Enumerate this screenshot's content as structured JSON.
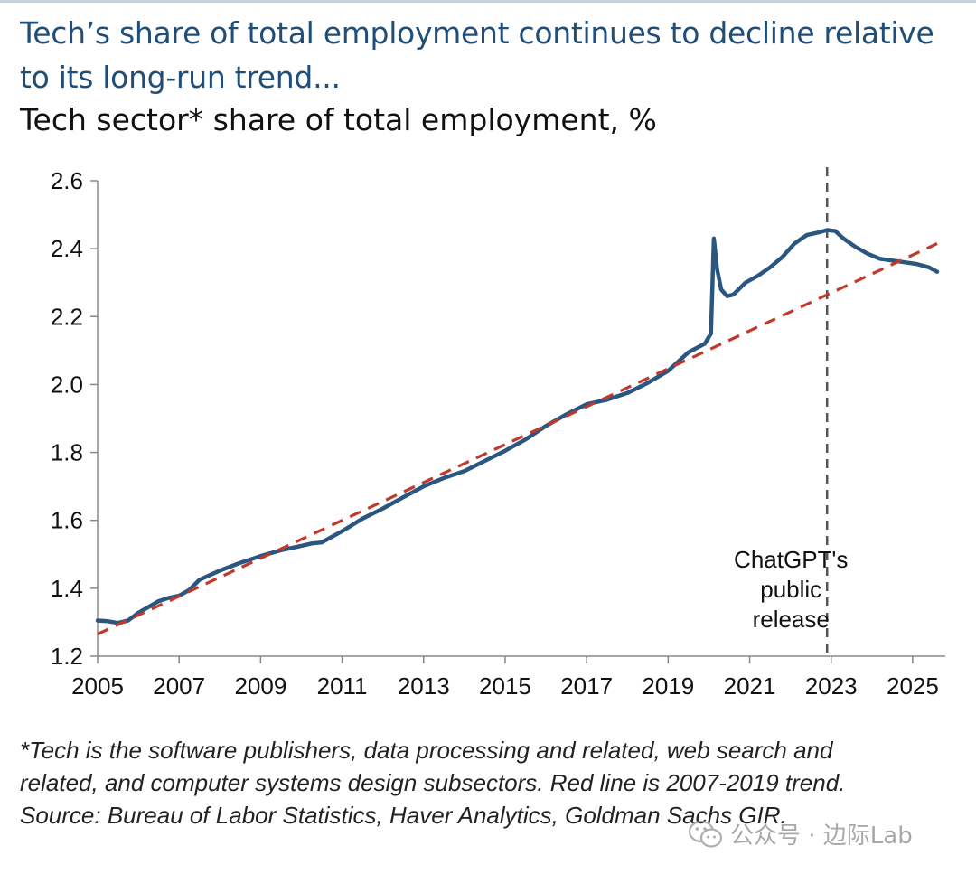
{
  "title": "Tech’s share of total employment continues to decline relative to its long-run trend...",
  "subtitle": "Tech sector* share of total employment, %",
  "footnote": [
    "*Tech is the software publishers, data processing and related, web search and",
    "related, and computer systems design subsectors. Red line is 2007-2019 trend.",
    "Source: Bureau of Labor Statistics, Haver Analytics, Goldman Sachs GIR."
  ],
  "watermark": "公众号 · 边际Lab",
  "colors": {
    "title": "#1f4e79",
    "series": "#2b5680",
    "trend": "#c0392b",
    "marker": "#555555"
  },
  "chart_data": {
    "type": "line",
    "xlim": [
      2005,
      2025.8
    ],
    "ylim": [
      1.2,
      2.6
    ],
    "x_ticks": [
      2005,
      2007,
      2009,
      2011,
      2013,
      2015,
      2017,
      2019,
      2021,
      2023,
      2025
    ],
    "x_tick_labels": [
      "2005",
      "2007",
      "2009",
      "2011",
      "2013",
      "2015",
      "2017",
      "2019",
      "2021",
      "2023",
      "2025"
    ],
    "y_ticks": [
      1.2,
      1.4,
      1.6,
      1.8,
      2.0,
      2.2,
      2.4,
      2.6
    ],
    "y_tick_labels": [
      "1.2",
      "1.4",
      "1.6",
      "1.8",
      "2.0",
      "2.2",
      "2.4",
      "2.6"
    ],
    "series": [
      {
        "name": "Tech sector share of total employment",
        "style": "solid",
        "x": [
          2005.0,
          2005.25,
          2005.5,
          2005.75,
          2006.0,
          2006.25,
          2006.5,
          2006.75,
          2007.0,
          2007.25,
          2007.5,
          2008.0,
          2008.5,
          2009.0,
          2009.5,
          2010.0,
          2010.25,
          2010.5,
          2011.0,
          2011.5,
          2012.0,
          2012.5,
          2013.0,
          2013.5,
          2014.0,
          2014.5,
          2015.0,
          2015.5,
          2016.0,
          2016.5,
          2017.0,
          2017.5,
          2018.0,
          2018.5,
          2019.0,
          2019.5,
          2019.9,
          2020.05,
          2020.12,
          2020.2,
          2020.3,
          2020.45,
          2020.6,
          2020.9,
          2021.2,
          2021.5,
          2021.8,
          2022.1,
          2022.4,
          2022.7,
          2022.9,
          2023.1,
          2023.3,
          2023.6,
          2023.9,
          2024.2,
          2024.5,
          2024.8,
          2025.1,
          2025.4,
          2025.6
        ],
        "y": [
          1.305,
          1.303,
          1.298,
          1.305,
          1.328,
          1.345,
          1.362,
          1.372,
          1.378,
          1.395,
          1.425,
          1.452,
          1.475,
          1.495,
          1.512,
          1.525,
          1.532,
          1.535,
          1.568,
          1.605,
          1.635,
          1.668,
          1.7,
          1.725,
          1.745,
          1.775,
          1.805,
          1.838,
          1.878,
          1.912,
          1.942,
          1.955,
          1.975,
          2.005,
          2.04,
          2.095,
          2.12,
          2.15,
          2.43,
          2.34,
          2.28,
          2.26,
          2.265,
          2.3,
          2.32,
          2.345,
          2.375,
          2.415,
          2.44,
          2.448,
          2.455,
          2.452,
          2.43,
          2.405,
          2.385,
          2.37,
          2.365,
          2.36,
          2.355,
          2.345,
          2.332
        ]
      },
      {
        "name": "2007-2019 trend",
        "style": "dashed",
        "x": [
          2005.0,
          2025.6
        ],
        "y": [
          1.265,
          2.415
        ]
      }
    ],
    "annotations": [
      {
        "label": "ChatGPT's\npublic\nrelease",
        "x": 2022.9,
        "style": "dashed-vertical"
      }
    ],
    "grid": false,
    "legend": "none"
  }
}
